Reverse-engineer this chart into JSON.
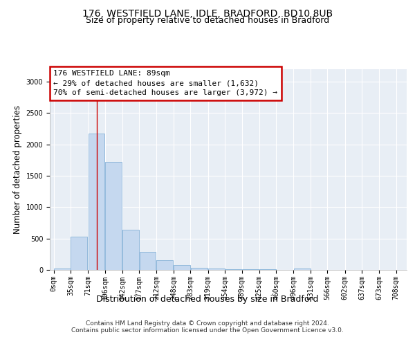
{
  "title_line1": "176, WESTFIELD LANE, IDLE, BRADFORD, BD10 8UB",
  "title_line2": "Size of property relative to detached houses in Bradford",
  "xlabel": "Distribution of detached houses by size in Bradford",
  "ylabel": "Number of detached properties",
  "bin_edges": [
    0,
    35,
    71,
    106,
    142,
    177,
    212,
    248,
    283,
    319,
    354,
    389,
    425,
    460,
    496,
    531,
    566,
    602,
    637,
    673,
    708
  ],
  "bin_labels": [
    "0sqm",
    "35sqm",
    "71sqm",
    "106sqm",
    "142sqm",
    "177sqm",
    "212sqm",
    "248sqm",
    "283sqm",
    "319sqm",
    "354sqm",
    "389sqm",
    "425sqm",
    "460sqm",
    "496sqm",
    "531sqm",
    "566sqm",
    "602sqm",
    "637sqm",
    "673sqm",
    "708sqm"
  ],
  "bar_heights": [
    25,
    525,
    2175,
    1725,
    635,
    285,
    150,
    75,
    35,
    20,
    15,
    15,
    10,
    5,
    20,
    5,
    5,
    5,
    5,
    5
  ],
  "bar_color": "#c5d8ef",
  "bar_edge_color": "#89b4d9",
  "red_line_x": 89,
  "ylim": [
    0,
    3200
  ],
  "yticks": [
    0,
    500,
    1000,
    1500,
    2000,
    2500,
    3000
  ],
  "annotation_text": "176 WESTFIELD LANE: 89sqm\n← 29% of detached houses are smaller (1,632)\n70% of semi-detached houses are larger (3,972) →",
  "annotation_box_color": "#ffffff",
  "annotation_box_edge": "#cc0000",
  "footer_line1": "Contains HM Land Registry data © Crown copyright and database right 2024.",
  "footer_line2": "Contains public sector information licensed under the Open Government Licence v3.0.",
  "bg_color": "#ffffff",
  "plot_bg_color": "#e8eef5",
  "grid_color": "#ffffff",
  "title_fontsize": 10,
  "subtitle_fontsize": 9,
  "axis_label_fontsize": 8.5,
  "tick_fontsize": 7,
  "footer_fontsize": 6.5,
  "annotation_fontsize": 8
}
